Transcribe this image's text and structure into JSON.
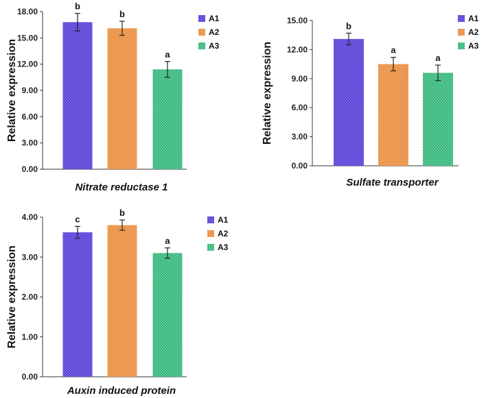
{
  "colors": {
    "A1": "#5b3fd6",
    "A2": "#e98a3c",
    "A3": "#2fb476"
  },
  "chart_data": [
    {
      "type": "bar",
      "title": "",
      "xlabel": "Nitrate reductase 1",
      "ylabel": "Relative expression",
      "ylim": [
        0,
        18
      ],
      "yticks": [
        "0.00",
        "3.00",
        "6.00",
        "9.00",
        "12.00",
        "15.00",
        "18.00"
      ],
      "legend_position": "right",
      "series": [
        {
          "name": "A1",
          "value": 16.8,
          "error": 1.0,
          "label": "b"
        },
        {
          "name": "A2",
          "value": 16.1,
          "error": 0.8,
          "label": "b"
        },
        {
          "name": "A3",
          "value": 11.4,
          "error": 0.9,
          "label": "a"
        }
      ]
    },
    {
      "type": "bar",
      "title": "",
      "xlabel": "Sulfate transporter",
      "ylabel": "Relative expression",
      "ylim": [
        0,
        15
      ],
      "yticks": [
        "0.00",
        "3.00",
        "6.00",
        "9.00",
        "12.00",
        "15.00"
      ],
      "legend_position": "right",
      "series": [
        {
          "name": "A1",
          "value": 13.1,
          "error": 0.6,
          "label": "b"
        },
        {
          "name": "A2",
          "value": 10.5,
          "error": 0.7,
          "label": "a"
        },
        {
          "name": "A3",
          "value": 9.6,
          "error": 0.8,
          "label": "a"
        }
      ]
    },
    {
      "type": "bar",
      "title": "",
      "xlabel": "Auxin induced protein",
      "ylabel": "Relative expression",
      "ylim": [
        0,
        4
      ],
      "yticks": [
        "0.00",
        "1.00",
        "2.00",
        "3.00",
        "4.00"
      ],
      "legend_position": "right",
      "series": [
        {
          "name": "A1",
          "value": 3.62,
          "error": 0.15,
          "label": "c"
        },
        {
          "name": "A2",
          "value": 3.8,
          "error": 0.13,
          "label": "b"
        },
        {
          "name": "A3",
          "value": 3.1,
          "error": 0.13,
          "label": "a"
        }
      ]
    }
  ]
}
